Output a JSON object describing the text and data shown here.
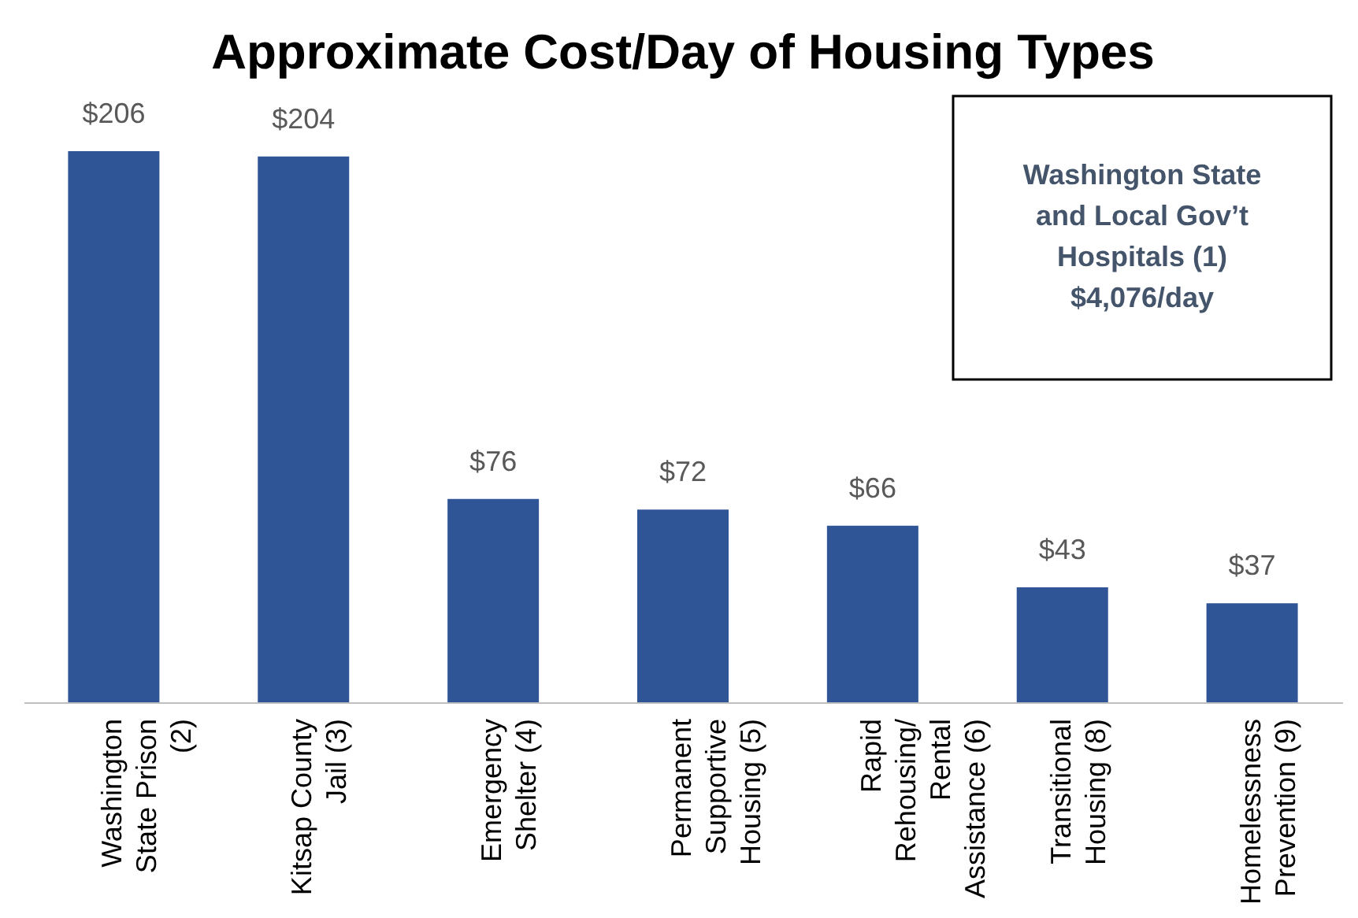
{
  "chart_data": {
    "type": "bar",
    "title": "Approximate Cost/Day of Housing Types",
    "categories": [
      "Washington State Prison (2)",
      "Kitsap County Jail (3)",
      "Emergency Shelter (4)",
      "Permanent Supportive Housing (5)",
      "Rapid Rehousing/ Rental Assistance (6)",
      "Transitional Housing (8)",
      "Homelessness Prevention (9)"
    ],
    "values": [
      206,
      204,
      76,
      72,
      66,
      43,
      37
    ],
    "value_labels": [
      "$206",
      "$204",
      "$76",
      "$72",
      "$66",
      "$43",
      "$37"
    ],
    "color": "#2f5597",
    "annotations": [
      "Washington State and Local Gov’t Hospitals (1) $4,076/day"
    ],
    "grid": false
  }
}
